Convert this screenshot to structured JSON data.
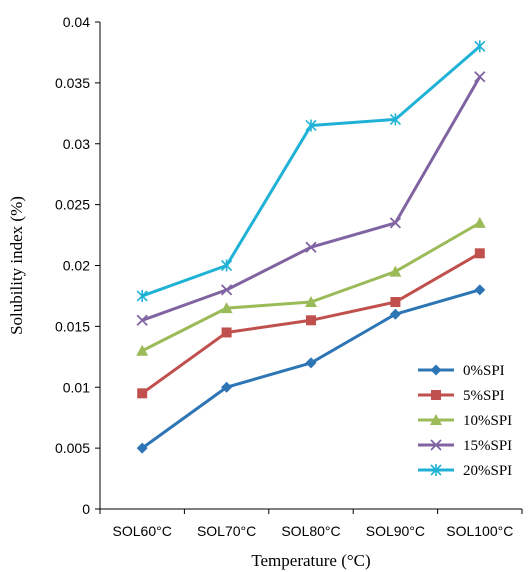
{
  "chart_data": {
    "type": "line",
    "categories": [
      "SOL60°C",
      "SOL70°C",
      "SOL80°C",
      "SOL90°C",
      "SOL100°C"
    ],
    "xlabel": "Temperature (°C)",
    "ylabel": "Solubility index (%)",
    "ylim": [
      0,
      0.04
    ],
    "yticks": [
      "0",
      "0.005",
      "0.01",
      "0.015",
      "0.02",
      "0.025",
      "0.03",
      "0.035",
      "0.04"
    ],
    "grid": false,
    "legend_position": "bottom-right",
    "series": [
      {
        "name": "0%SPI",
        "color": "#2E75B6",
        "marker": "diamond",
        "values": [
          0.005,
          0.01,
          0.012,
          0.016,
          0.018
        ]
      },
      {
        "name": "5%SPI",
        "color": "#C0504D",
        "marker": "square",
        "values": [
          0.0095,
          0.0145,
          0.0155,
          0.017,
          0.021
        ]
      },
      {
        "name": "10%SPI",
        "color": "#9BBB59",
        "marker": "triangle",
        "values": [
          0.013,
          0.0165,
          0.017,
          0.0195,
          0.0235
        ]
      },
      {
        "name": "15%SPI",
        "color": "#8064A2",
        "marker": "x",
        "values": [
          0.0155,
          0.018,
          0.0215,
          0.0235,
          0.0355
        ]
      },
      {
        "name": "20%SPI",
        "color": "#1FB2D6",
        "marker": "star",
        "values": [
          0.0175,
          0.02,
          0.0315,
          0.032,
          0.038
        ]
      }
    ]
  }
}
